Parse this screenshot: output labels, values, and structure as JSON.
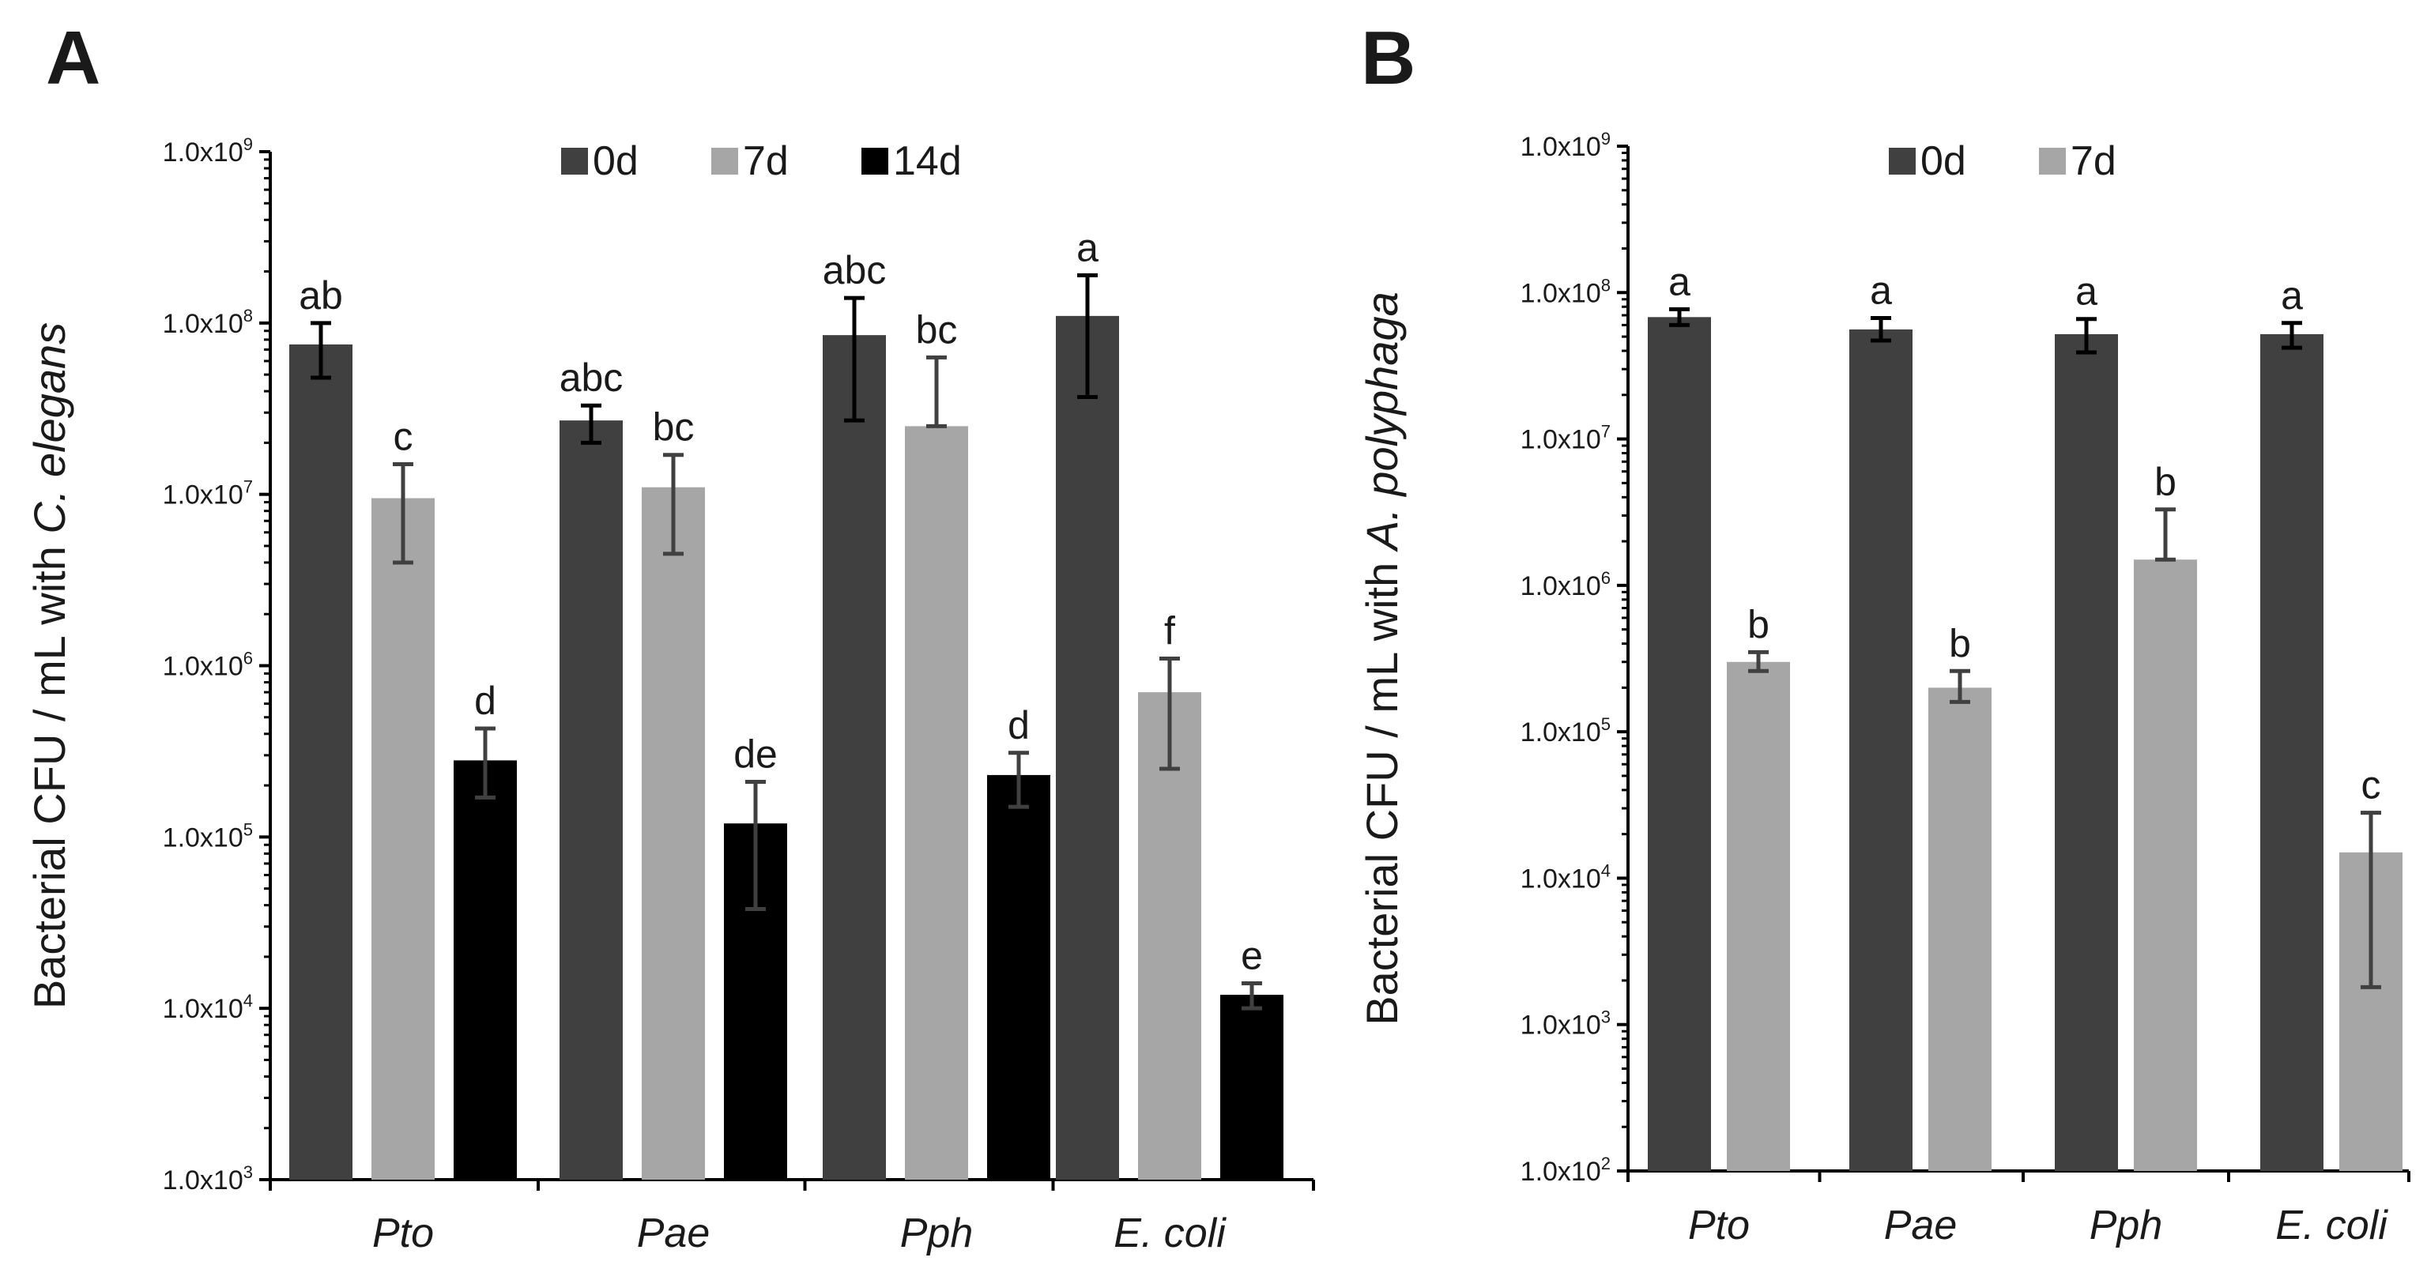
{
  "colors": {
    "0d": "#404040",
    "7d": "#a6a6a6",
    "14d": "#000000",
    "axis": "#000000",
    "error_0d": "#000000",
    "error_7d": "#404040",
    "error_14d": "#404040"
  },
  "chart_data": [
    {
      "panel": "A",
      "type": "bar",
      "log_scale": true,
      "ylim": [
        1000,
        1000000000
      ],
      "yticks": [
        {
          "mantissa": "1.0x10",
          "exp": "3"
        },
        {
          "mantissa": "1.0x10",
          "exp": "4"
        },
        {
          "mantissa": "1.0x10",
          "exp": "5"
        },
        {
          "mantissa": "1.0x10",
          "exp": "6"
        },
        {
          "mantissa": "1.0x10",
          "exp": "7"
        },
        {
          "mantissa": "1.0x10",
          "exp": "8"
        },
        {
          "mantissa": "1.0x10",
          "exp": "9"
        }
      ],
      "ylabel_plain": "Bacterial CFU / mL with ",
      "ylabel_italic": "C. elegans",
      "categories": [
        "Pto",
        "Pae",
        "Pph",
        "E. coli"
      ],
      "legend_position": "top-center",
      "series": [
        {
          "name": "0d",
          "color_key": "0d",
          "values": [
            75000000,
            27000000,
            85000000,
            110000000
          ],
          "err_low": [
            48000000,
            20000000,
            27000000,
            37000000
          ],
          "err_high": [
            100000000,
            33000000,
            140000000,
            190000000
          ],
          "labels": [
            "ab",
            "abc",
            "abc",
            "a"
          ]
        },
        {
          "name": "7d",
          "color_key": "7d",
          "values": [
            9500000,
            11000000,
            25000000,
            700000
          ],
          "err_low": [
            4000000,
            4500000,
            25000000,
            250000
          ],
          "err_high": [
            15000000,
            17000000,
            63000000,
            1100000
          ],
          "labels": [
            "c",
            "bc",
            "bc",
            "f"
          ]
        },
        {
          "name": "14d",
          "color_key": "14d",
          "values": [
            280000,
            120000,
            230000,
            12000
          ],
          "err_low": [
            170000,
            38000,
            150000,
            10000
          ],
          "err_high": [
            430000,
            210000,
            310000,
            14000
          ],
          "labels": [
            "d",
            "de",
            "d",
            "e"
          ]
        }
      ]
    },
    {
      "panel": "B",
      "type": "bar",
      "log_scale": true,
      "ylim": [
        100,
        1000000000
      ],
      "yticks": [
        {
          "mantissa": "1.0x10",
          "exp": "2"
        },
        {
          "mantissa": "1.0x10",
          "exp": "3"
        },
        {
          "mantissa": "1.0x10",
          "exp": "4"
        },
        {
          "mantissa": "1.0x10",
          "exp": "5"
        },
        {
          "mantissa": "1.0x10",
          "exp": "6"
        },
        {
          "mantissa": "1.0x10",
          "exp": "7"
        },
        {
          "mantissa": "1.0x10",
          "exp": "8"
        },
        {
          "mantissa": "1.0x10",
          "exp": "9"
        }
      ],
      "ylabel_plain": "Bacterial CFU / mL with ",
      "ylabel_italic": "A. polyphaga",
      "categories": [
        "Pto",
        "Pae",
        "Pph",
        "E. coli"
      ],
      "legend_position": "top-center",
      "series": [
        {
          "name": "0d",
          "color_key": "0d",
          "values": [
            68000000,
            56000000,
            52000000,
            52000000
          ],
          "err_low": [
            60000000,
            47000000,
            39000000,
            42000000
          ],
          "err_high": [
            77000000,
            67000000,
            66000000,
            62000000
          ],
          "labels": [
            "a",
            "a",
            "a",
            "a"
          ]
        },
        {
          "name": "7d",
          "color_key": "7d",
          "values": [
            300000,
            200000,
            1500000,
            15000
          ],
          "err_low": [
            260000,
            160000,
            1500000,
            1800
          ],
          "err_high": [
            350000,
            260000,
            3300000,
            28000
          ],
          "labels": [
            "b",
            "b",
            "b",
            "c"
          ]
        }
      ]
    }
  ]
}
